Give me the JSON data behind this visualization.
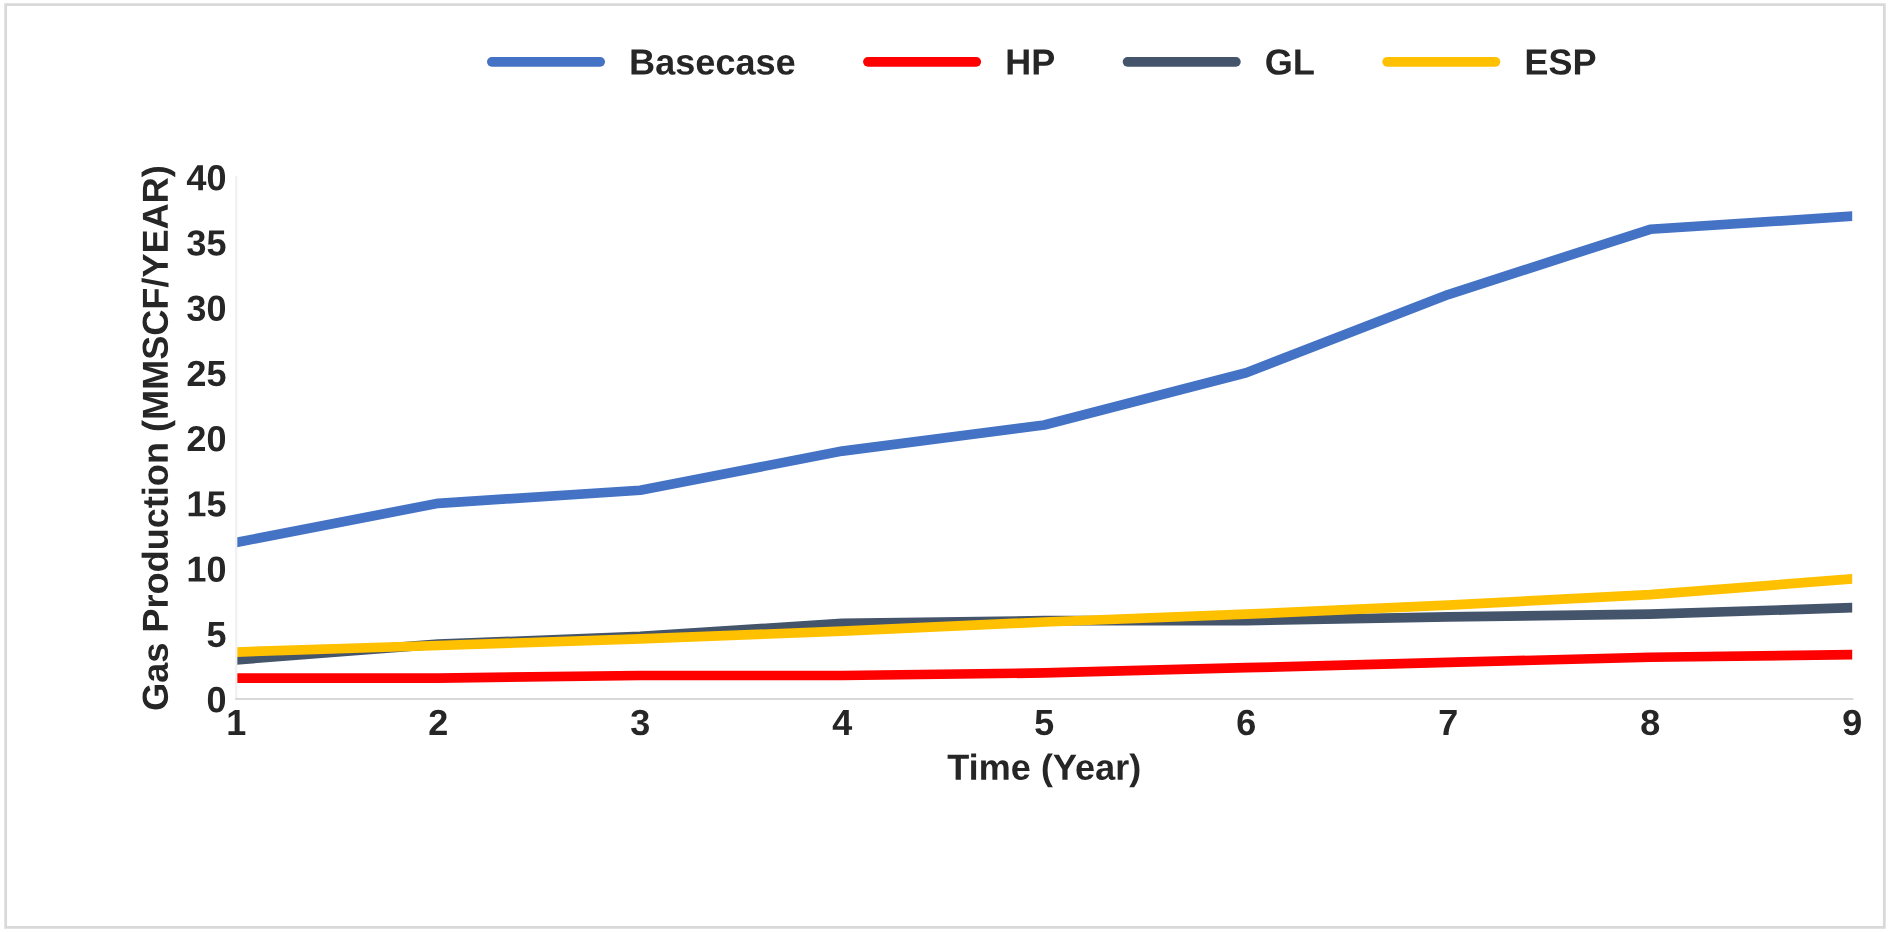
{
  "chart_data": {
    "type": "line",
    "xlabel": "Time (Year)",
    "ylabel": "Gas Production (MMSCF/YEAR)",
    "x": [
      1,
      2,
      3,
      4,
      5,
      6,
      7,
      8,
      9
    ],
    "series": [
      {
        "name": "Basecase",
        "color": "#4472c4",
        "values": [
          12,
          15,
          16,
          19,
          21,
          25,
          31,
          36,
          37
        ]
      },
      {
        "name": "HP",
        "color": "#ff0000",
        "values": [
          1.6,
          1.6,
          1.8,
          1.8,
          2.0,
          2.4,
          2.8,
          3.2,
          3.4
        ]
      },
      {
        "name": "GL",
        "color": "#44546a",
        "values": [
          3.0,
          4.2,
          4.8,
          5.8,
          6.0,
          6.0,
          6.3,
          6.5,
          7.0
        ]
      },
      {
        "name": "ESP",
        "color": "#ffc000",
        "values": [
          3.6,
          4.1,
          4.6,
          5.2,
          5.9,
          6.5,
          7.2,
          8.0,
          9.2
        ]
      }
    ],
    "xlim": [
      1,
      9
    ],
    "xticks": [
      1,
      2,
      3,
      4,
      5,
      6,
      7,
      8,
      9
    ],
    "ylim": [
      0,
      40
    ],
    "yticks": [
      0,
      5,
      10,
      15,
      20,
      25,
      30,
      35,
      40
    ],
    "grid": false,
    "legend": "top",
    "marker": "none",
    "line_style": "solid"
  }
}
